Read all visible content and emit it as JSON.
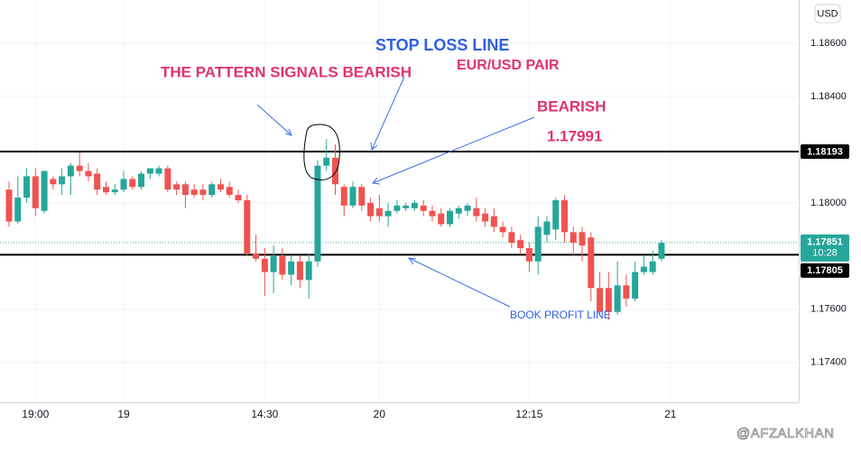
{
  "chart_data": {
    "type": "candlestick",
    "currency": "USD",
    "categories": [
      null,
      null,
      null,
      "19:00",
      null,
      null,
      null,
      null,
      null,
      null,
      null,
      null,
      null,
      "19",
      null,
      null,
      null,
      null,
      null,
      null,
      null,
      null,
      null,
      null,
      null,
      null,
      null,
      null,
      null,
      "14:30",
      null,
      null,
      null,
      null,
      null,
      null,
      null,
      null,
      null,
      null,
      null,
      null,
      "20",
      null,
      null,
      null,
      null,
      null,
      null,
      null,
      null,
      null,
      null,
      null,
      null,
      null,
      null,
      null,
      null,
      "12:15",
      null,
      null,
      null,
      null,
      null,
      null,
      null,
      null,
      null,
      null,
      null,
      null,
      null,
      null,
      null,
      "21",
      null,
      null,
      null,
      null,
      null,
      null,
      null,
      null,
      null,
      null,
      null,
      null,
      null,
      null
    ],
    "open": [
      1.1805,
      1.1793,
      1.1802,
      1.181,
      1.1797,
      1.1809,
      1.1807,
      1.181,
      1.1814,
      1.1812,
      1.1811,
      1.1806,
      1.1804,
      1.1805,
      1.1809,
      1.1806,
      1.1811,
      1.1811,
      1.1813,
      1.1807,
      1.1807,
      1.1805,
      1.1805,
      1.1803,
      1.1807,
      1.1806,
      1.1803,
      1.1801,
      1.1781,
      1.1779,
      1.1774,
      1.178,
      1.1773,
      1.1778,
      1.1771,
      1.1778,
      1.1814,
      1.1817,
      1.1806,
      1.1799,
      1.1806,
      1.18,
      1.1798,
      1.1795,
      1.1797,
      1.1798,
      1.1798,
      1.1799,
      1.1797,
      1.1796,
      1.1792,
      1.1796,
      1.1797,
      1.1798,
      1.1796,
      1.1795,
      1.1791,
      1.1789,
      1.1786,
      1.1783,
      1.1778,
      1.1788,
      1.179,
      1.1801,
      1.1789,
      1.1789,
      1.1787,
      1.1768,
      1.1768,
      1.1759,
      1.1769,
      1.1764,
      1.1774,
      1.1774,
      1.1779,
      null,
      null,
      null,
      null,
      null,
      null,
      null,
      null,
      null,
      null,
      null,
      null,
      null,
      null,
      null
    ],
    "high": [
      1.1808,
      1.181,
      1.1813,
      1.1813,
      1.1812,
      1.181,
      1.1813,
      1.1815,
      1.1819,
      1.1815,
      1.1813,
      1.1808,
      1.1807,
      1.1812,
      1.181,
      1.1812,
      1.1813,
      1.1814,
      1.1814,
      1.1808,
      1.1808,
      1.1807,
      1.1807,
      1.1808,
      1.1809,
      1.1808,
      1.1805,
      1.1803,
      1.1788,
      1.1783,
      1.1784,
      1.1783,
      1.178,
      1.178,
      1.1781,
      1.1816,
      1.1824,
      1.1822,
      1.1807,
      1.1808,
      1.1807,
      1.1802,
      1.1803,
      1.18,
      1.1801,
      1.18,
      1.1801,
      1.1801,
      1.1799,
      1.1798,
      1.1798,
      1.1799,
      1.18,
      1.1802,
      1.1798,
      1.1798,
      1.1793,
      1.1791,
      1.1788,
      1.1785,
      1.1795,
      1.1795,
      1.1802,
      1.1803,
      1.1791,
      1.1791,
      1.1789,
      1.1774,
      1.1774,
      1.1778,
      1.1773,
      1.1778,
      1.178,
      1.1782,
      1.1786,
      null,
      null,
      null,
      null,
      null,
      null,
      null,
      null,
      null,
      null,
      null,
      null,
      null,
      null,
      null
    ],
    "low": [
      1.1791,
      1.1792,
      1.18,
      1.1795,
      1.1796,
      1.1805,
      1.1803,
      1.1803,
      1.181,
      1.1808,
      1.1803,
      1.1803,
      1.1803,
      1.1804,
      1.1805,
      1.1805,
      1.1809,
      1.181,
      1.1804,
      1.1803,
      1.1798,
      1.1802,
      1.1801,
      1.1802,
      1.1804,
      1.1802,
      1.18,
      1.178,
      1.1778,
      1.1765,
      1.1766,
      1.1771,
      1.1769,
      1.1768,
      1.1764,
      1.1776,
      1.1812,
      1.1803,
      1.1795,
      1.1798,
      1.1797,
      1.1793,
      1.1793,
      1.1791,
      1.1796,
      1.1797,
      1.1797,
      1.1795,
      1.1793,
      1.1791,
      1.1791,
      1.1794,
      1.1795,
      1.1793,
      1.1791,
      1.1789,
      1.1787,
      1.1783,
      1.1781,
      1.1774,
      1.1773,
      1.1785,
      1.1786,
      1.1785,
      1.178,
      1.1778,
      1.1763,
      1.1758,
      1.1756,
      1.1758,
      1.1761,
      1.1763,
      1.1773,
      1.1773,
      1.1778,
      null,
      null,
      null,
      null,
      null,
      null,
      null,
      null,
      null,
      null,
      null,
      null,
      null,
      null,
      null
    ],
    "close": [
      1.1793,
      1.1802,
      1.181,
      1.1798,
      1.1812,
      1.1807,
      1.181,
      1.1814,
      1.1812,
      1.181,
      1.1805,
      1.1804,
      1.1805,
      1.1809,
      1.1806,
      1.1811,
      1.1813,
      1.1813,
      1.1805,
      1.1805,
      1.1803,
      1.1803,
      1.1803,
      1.1807,
      1.1805,
      1.1803,
      1.1801,
      1.1781,
      1.1779,
      1.1774,
      1.178,
      1.1773,
      1.1778,
      1.1771,
      1.1778,
      1.1814,
      1.1817,
      1.1807,
      1.1799,
      1.1806,
      1.1799,
      1.1795,
      1.1795,
      1.1797,
      1.1799,
      1.1799,
      1.18,
      1.1797,
      1.1795,
      1.1792,
      1.1797,
      1.1798,
      1.1799,
      1.1795,
      1.1793,
      1.1791,
      1.1789,
      1.1785,
      1.1783,
      1.1778,
      1.1791,
      1.1793,
      1.1801,
      1.1789,
      1.1785,
      1.1784,
      1.1768,
      1.1759,
      1.1759,
      1.1769,
      1.1764,
      1.1774,
      1.1776,
      1.1778,
      1.1785,
      null,
      null,
      null,
      null,
      null,
      null,
      null,
      null,
      null,
      null,
      null,
      null,
      null,
      null,
      null
    ],
    "up_color": "#26a69a",
    "down_color": "#ef5350",
    "ylim": [
      1.1725,
      1.18763
    ],
    "yticks": [
      {
        "value": 1.174,
        "label": "1.17400"
      },
      {
        "value": 1.176,
        "label": "1.17600"
      },
      {
        "value": 1.18,
        "label": "1.18000"
      },
      {
        "value": 1.184,
        "label": "1.18400"
      },
      {
        "value": 1.186,
        "label": "1.18600"
      }
    ],
    "grid": true,
    "levels": [
      {
        "value": 1.18193,
        "color": "#000000"
      },
      {
        "value": 1.17805,
        "color": "#000000"
      }
    ],
    "last_price": {
      "value": 1.17851,
      "countdown": "10:28",
      "color": "#26a69a"
    },
    "annotations": [
      {
        "text": "STOP LOSS LINE",
        "color": "#2f5fe0"
      },
      {
        "text": "THE PATTERN SIGNALS BEARISH",
        "color": "#e0336b"
      },
      {
        "text": "EUR/USD PAIR",
        "color": "#e0336b"
      },
      {
        "text": "BEARISH",
        "color": "#e0336b"
      },
      {
        "text": "1.17991",
        "color": "#e0336b"
      },
      {
        "text": "BOOK PROFIT LINE",
        "color": "#2f5fe0"
      }
    ],
    "watermark": "@AFZALKHAN"
  }
}
